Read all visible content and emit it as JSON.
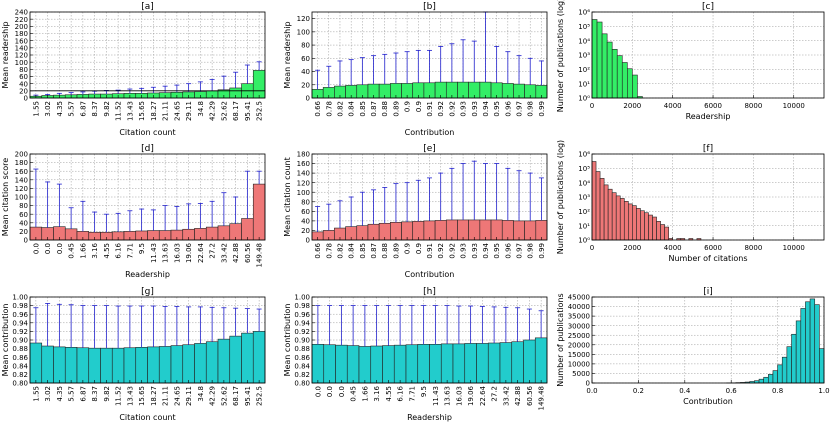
{
  "colors": {
    "green": "#33ee66",
    "red": "#ee7777",
    "cyan": "#22cccc",
    "bar_edge": "#222222",
    "err": "#1f1fcc",
    "grid": "#999999"
  },
  "chart_data": [
    {
      "id": "a",
      "panel_title": "[a]",
      "type": "bar",
      "ylabel": "Mean readership",
      "xlabel": "Citation count",
      "ylim": [
        0,
        240
      ],
      "yticks": [
        "0",
        "20",
        "40",
        "60",
        "80",
        "100",
        "120",
        "140",
        "160",
        "180",
        "200",
        "220",
        "240"
      ],
      "categories": [
        "1.55",
        "3.02",
        "4.35",
        "5.57",
        "6.87",
        "8.37",
        "9.82",
        "11.52",
        "13.43",
        "15.65",
        "18.27",
        "21.11",
        "24.65",
        "29.11",
        "34.8",
        "42.29",
        "52.62",
        "68.17",
        "95.41",
        "252.5"
      ],
      "values": [
        5,
        7,
        8,
        9,
        10,
        11,
        11,
        12,
        13,
        13,
        14,
        15,
        16,
        17,
        18,
        20,
        23,
        28,
        40,
        77
      ],
      "error_upper": [
        8,
        10,
        13,
        15,
        17,
        19,
        21,
        22,
        25,
        27,
        30,
        33,
        36,
        40,
        45,
        52,
        61,
        72,
        92,
        101
      ],
      "color": "green",
      "hline": 20
    },
    {
      "id": "b",
      "panel_title": "[b]",
      "type": "bar",
      "ylabel": "Mean readership",
      "xlabel": "Contribution",
      "ylim": [
        0,
        130
      ],
      "yticks": [
        "0",
        "20",
        "40",
        "60",
        "80",
        "100",
        "120"
      ],
      "categories": [
        "0.66",
        "0.78",
        "0.82",
        "0.84",
        "0.85",
        "0.87",
        "0.88",
        "0.89",
        "0.9",
        "0.9",
        "0.91",
        "0.92",
        "0.92",
        "0.93",
        "0.93",
        "0.94",
        "0.95",
        "0.96",
        "0.97",
        "0.98",
        "0.99"
      ],
      "values": [
        13,
        16,
        18,
        19,
        20,
        21,
        21,
        22,
        22,
        23,
        23,
        24,
        24,
        24,
        24,
        24,
        23,
        22,
        21,
        20,
        19
      ],
      "error_upper": [
        42,
        48,
        56,
        58,
        61,
        64,
        66,
        68,
        70,
        72,
        72,
        78,
        82,
        88,
        86,
        130,
        78,
        70,
        64,
        60,
        56
      ],
      "color": "green"
    },
    {
      "id": "c",
      "panel_title": "[c]",
      "type": "bar",
      "ylabel": "Number of publications (log)",
      "xlabel": "Readership",
      "xlim": [
        0,
        11500
      ],
      "ylim_log": [
        0,
        6
      ],
      "xticks": [
        "0",
        "2000",
        "4000",
        "6000",
        "8000",
        "10000"
      ],
      "yticks": [
        "10⁰",
        "10¹",
        "10²",
        "10³",
        "10⁴",
        "10⁵",
        "10⁶"
      ],
      "bin_width": 250,
      "counts": [
        300000,
        200000,
        30000,
        8000,
        2500,
        900,
        300,
        110,
        40,
        1
      ],
      "color": "green"
    },
    {
      "id": "d",
      "panel_title": "[d]",
      "type": "bar",
      "ylabel": "Mean citation score",
      "xlabel": "Readership",
      "ylim": [
        0,
        200
      ],
      "yticks": [
        "0",
        "20",
        "40",
        "60",
        "80",
        "100",
        "120",
        "140",
        "160",
        "180",
        "200"
      ],
      "categories": [
        "0.0",
        "0.0",
        "0.0",
        "0.45",
        "1.66",
        "3.16",
        "4.55",
        "6.16",
        "7.71",
        "9.5",
        "11.43",
        "13.63",
        "16.03",
        "19.06",
        "22.64",
        "27.2",
        "33.42",
        "42.88",
        "60.56",
        "149.48"
      ],
      "values": [
        30,
        29,
        31,
        26,
        20,
        18,
        18,
        19,
        20,
        21,
        22,
        22,
        23,
        25,
        27,
        30,
        33,
        38,
        50,
        130
      ],
      "error_upper": [
        165,
        135,
        130,
        75,
        90,
        65,
        60,
        62,
        68,
        72,
        70,
        80,
        78,
        84,
        85,
        90,
        110,
        100,
        160,
        160
      ],
      "color": "red"
    },
    {
      "id": "e",
      "panel_title": "[e]",
      "type": "bar",
      "ylabel": "Mean citation count",
      "xlabel": "Contribution",
      "ylim": [
        0,
        180
      ],
      "yticks": [
        "0",
        "20",
        "40",
        "60",
        "80",
        "100",
        "120",
        "140",
        "160",
        "180"
      ],
      "categories": [
        "0.66",
        "0.78",
        "0.82",
        "0.84",
        "0.85",
        "0.87",
        "0.88",
        "0.89",
        "0.9",
        "0.9",
        "0.91",
        "0.92",
        "0.92",
        "0.93",
        "0.93",
        "0.94",
        "0.95",
        "0.96",
        "0.97",
        "0.98",
        "0.99"
      ],
      "values": [
        17,
        20,
        25,
        28,
        30,
        33,
        35,
        37,
        38,
        39,
        40,
        41,
        42,
        42,
        42,
        42,
        42,
        41,
        40,
        40,
        41
      ],
      "error_upper": [
        70,
        75,
        82,
        90,
        100,
        105,
        110,
        118,
        120,
        125,
        130,
        140,
        150,
        160,
        165,
        160,
        160,
        150,
        145,
        140,
        130
      ],
      "color": "red"
    },
    {
      "id": "f",
      "panel_title": "[f]",
      "type": "bar",
      "ylabel": "Number of publications (log)",
      "xlabel": "Number of citations",
      "xlim": [
        0,
        11500
      ],
      "ylim_log": [
        0,
        6
      ],
      "xticks": [
        "0",
        "2000",
        "4000",
        "6000",
        "8000",
        "10000"
      ],
      "yticks": [
        "10⁰",
        "10¹",
        "10²",
        "10³",
        "10⁴",
        "10⁵",
        "10⁶"
      ],
      "bin_width": 200,
      "counts": [
        300000,
        60000,
        20000,
        7000,
        3500,
        2000,
        1200,
        800,
        500,
        330,
        250,
        160,
        110,
        80,
        55,
        40,
        20,
        12,
        8,
        1,
        0,
        1,
        1,
        0,
        1,
        0,
        1
      ],
      "color": "red"
    },
    {
      "id": "g",
      "panel_title": "[g]",
      "type": "bar",
      "ylabel": "Mean contribution",
      "xlabel": "Citation count",
      "ylim": [
        0.8,
        1.0
      ],
      "yticks": [
        "0.80",
        "0.82",
        "0.84",
        "0.86",
        "0.88",
        "0.90",
        "0.92",
        "0.94",
        "0.96",
        "0.98",
        "1.00"
      ],
      "categories": [
        "1.55",
        "3.02",
        "4.35",
        "5.57",
        "6.87",
        "8.37",
        "9.82",
        "11.52",
        "13.43",
        "15.65",
        "18.27",
        "21.11",
        "24.65",
        "29.11",
        "34.8",
        "42.29",
        "52.62",
        "68.17",
        "95.41",
        "252.5"
      ],
      "values": [
        0.893,
        0.886,
        0.884,
        0.883,
        0.882,
        0.881,
        0.881,
        0.881,
        0.882,
        0.883,
        0.884,
        0.885,
        0.887,
        0.889,
        0.892,
        0.896,
        0.902,
        0.909,
        0.916,
        0.92
      ],
      "error_upper": [
        0.975,
        0.985,
        0.983,
        0.982,
        0.98,
        0.98,
        0.98,
        0.979,
        0.979,
        0.979,
        0.979,
        0.978,
        0.978,
        0.977,
        0.977,
        0.976,
        0.975,
        0.974,
        0.973,
        0.972
      ],
      "color": "cyan"
    },
    {
      "id": "h",
      "panel_title": "[h]",
      "type": "bar",
      "ylabel": "Mean contribution",
      "xlabel": "Readership",
      "ylim": [
        0.8,
        1.0
      ],
      "yticks": [
        "0.80",
        "0.82",
        "0.84",
        "0.86",
        "0.88",
        "0.90",
        "0.92",
        "0.94",
        "0.96",
        "0.98",
        "1.00"
      ],
      "categories": [
        "0.0",
        "0.0",
        "0.0",
        "0.45",
        "1.66",
        "3.16",
        "4.55",
        "6.16",
        "7.71",
        "9.5",
        "11.43",
        "13.63",
        "16.03",
        "19.06",
        "22.64",
        "27.2",
        "33.42",
        "42.88",
        "60.56",
        "149.48"
      ],
      "values": [
        0.89,
        0.889,
        0.888,
        0.887,
        0.885,
        0.886,
        0.887,
        0.888,
        0.889,
        0.89,
        0.89,
        0.891,
        0.891,
        0.892,
        0.892,
        0.893,
        0.894,
        0.896,
        0.9,
        0.905
      ],
      "error_upper": [
        0.98,
        0.98,
        0.98,
        0.98,
        0.98,
        0.98,
        0.98,
        0.98,
        0.98,
        0.98,
        0.98,
        0.98,
        0.979,
        0.979,
        0.978,
        0.977,
        0.976,
        0.975,
        0.972,
        0.968
      ],
      "color": "cyan"
    },
    {
      "id": "i",
      "panel_title": "[i]",
      "type": "bar",
      "ylabel": "Number of publications",
      "xlabel": "Contribution",
      "xlim": [
        0,
        1.0
      ],
      "ylim": [
        0,
        45000
      ],
      "xticks": [
        "0.0",
        "0.2",
        "0.4",
        "0.6",
        "0.8",
        "1.0"
      ],
      "yticks": [
        "0",
        "5000",
        "10000",
        "15000",
        "20000",
        "25000",
        "30000",
        "35000",
        "40000",
        "45000"
      ],
      "bin_width": 0.02,
      "counts": [
        0,
        0,
        0,
        0,
        0,
        0,
        0,
        0,
        0,
        0,
        0,
        0,
        0,
        0,
        0,
        0,
        0,
        0,
        0,
        0,
        0,
        0,
        0,
        0,
        0,
        0,
        0,
        0,
        0,
        50,
        100,
        200,
        300,
        500,
        800,
        1200,
        2000,
        3000,
        4500,
        6500,
        9500,
        13500,
        19000,
        25500,
        32500,
        39000,
        42500,
        44000,
        41000,
        18000
      ],
      "color": "cyan"
    }
  ]
}
